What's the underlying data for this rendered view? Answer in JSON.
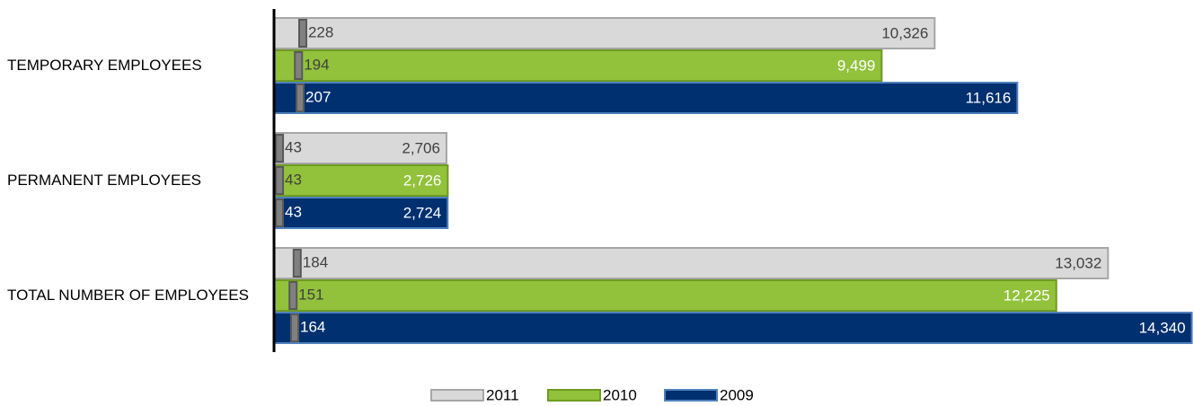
{
  "chart_data": {
    "type": "bar",
    "orientation": "horizontal",
    "categories": [
      "TEMPORARY EMPLOYEES",
      "PERMANENT EMPLOYEES",
      "TOTAL NUMBER OF EMPLOYEES"
    ],
    "series": [
      {
        "name": "2011",
        "color": "#d9d9d9",
        "values": [
          10326,
          2706,
          13032
        ],
        "value_labels": [
          "10,326",
          "2,706",
          "13,032"
        ],
        "marker_values": [
          228,
          43,
          184
        ]
      },
      {
        "name": "2010",
        "color": "#92c13b",
        "values": [
          9499,
          2726,
          12225
        ],
        "value_labels": [
          "9,499",
          "2,726",
          "12,225"
        ],
        "marker_values": [
          194,
          43,
          151
        ]
      },
      {
        "name": "2009",
        "color": "#003070",
        "values": [
          11616,
          2724,
          14340
        ],
        "value_labels": [
          "11,616",
          "2,724",
          "14,340"
        ],
        "marker_values": [
          207,
          43,
          164
        ]
      }
    ],
    "xlim": [
      0,
      14360
    ],
    "x2lim": [
      0,
      7300
    ],
    "legend": "bottom"
  }
}
